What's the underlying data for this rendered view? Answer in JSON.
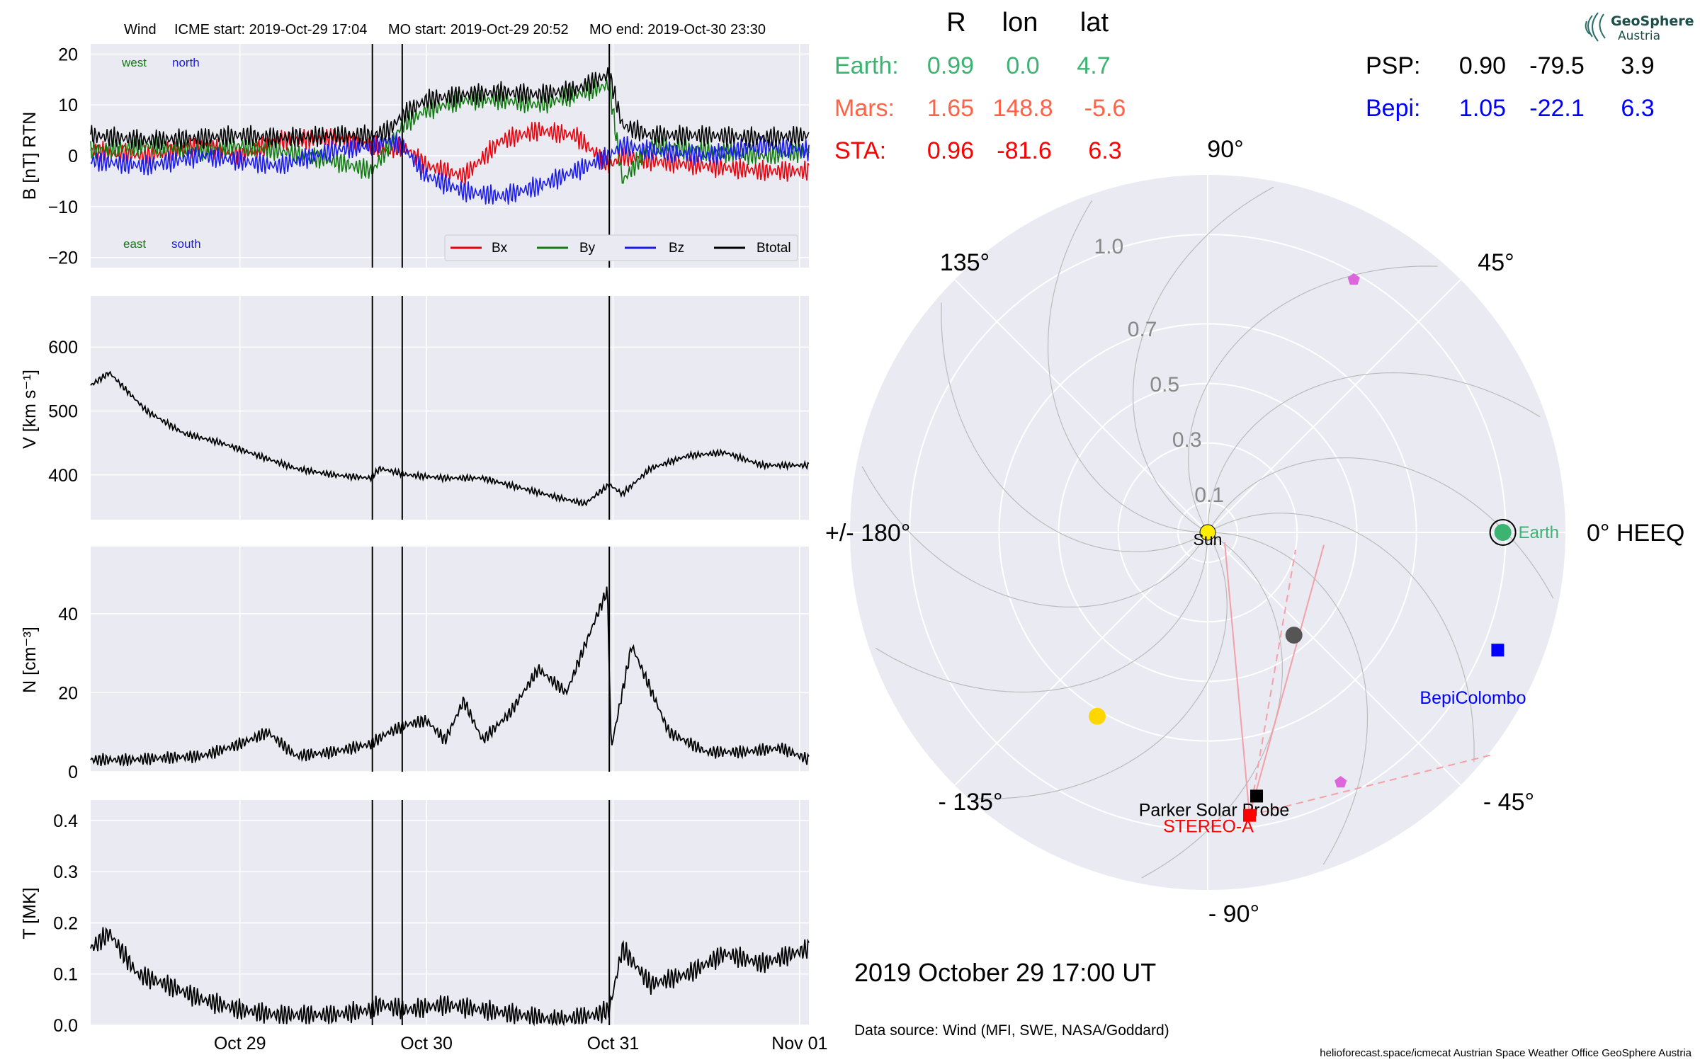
{
  "colors": {
    "plot_bg": "#eaeaf2",
    "grid": "#ffffff",
    "bx": "#e8000b",
    "by": "#117a11",
    "bz": "#1a1aee",
    "btotal": "#000000",
    "earth": "#3cb371",
    "mars": "#ff6347",
    "sta": "#ff0000",
    "psp": "#000000",
    "bepi": "#0000ff",
    "sun": "#ffee00",
    "ray": "#f4a0a8",
    "pentagon": "#dd66dd",
    "gray_planet": "#555555",
    "yellow_planet": "#ffd700"
  },
  "header": {
    "spacecraft": "Wind",
    "icme_start": "ICME start: 2019-Oct-29 17:04",
    "mo_start": "MO start: 2019-Oct-29 20:52",
    "mo_end": "MO end: 2019-Oct-30 23:30"
  },
  "chart_data": [
    {
      "type": "line",
      "panel": "magnetic-field",
      "ylabel": "B [nT] RTN",
      "ylim": [
        -22,
        22
      ],
      "yticks": [
        "20",
        "10",
        "0",
        "−10",
        "−20"
      ],
      "ytick_values": [
        20,
        10,
        0,
        -10,
        -20
      ],
      "xlim_days": [
        28.2,
        32.05
      ],
      "annotations": {
        "west": "west",
        "north": "north",
        "east": "east",
        "south": "south"
      },
      "legend_position": "bottom-right",
      "series": [
        {
          "name": "Bx",
          "color": "#e8000b",
          "x": [
            28.2,
            28.5,
            28.8,
            29.0,
            29.2,
            29.5,
            29.71,
            29.8,
            29.87,
            30.0,
            30.2,
            30.4,
            30.6,
            30.8,
            30.98,
            31.05,
            31.2,
            31.5,
            31.8,
            32.05
          ],
          "y": [
            1,
            0,
            2,
            0,
            3,
            3.5,
            2,
            1,
            2,
            -2,
            -4,
            3,
            5,
            4,
            -2,
            0,
            -1,
            -2,
            -3,
            -3
          ]
        },
        {
          "name": "By",
          "color": "#117a11",
          "x": [
            28.2,
            28.5,
            28.8,
            29.0,
            29.2,
            29.5,
            29.71,
            29.8,
            29.87,
            30.0,
            30.2,
            30.4,
            30.6,
            30.8,
            30.98,
            31.05,
            31.2,
            31.5,
            31.8,
            32.05
          ],
          "y": [
            1,
            2,
            1,
            2,
            1,
            -1,
            -3,
            2,
            6,
            9,
            11,
            11,
            10,
            12,
            14,
            -5,
            2,
            1,
            0,
            1
          ]
        },
        {
          "name": "Bz",
          "color": "#1a1aee",
          "x": [
            28.2,
            28.5,
            28.8,
            29.0,
            29.2,
            29.5,
            29.71,
            29.8,
            29.87,
            30.0,
            30.2,
            30.4,
            30.6,
            30.8,
            30.98,
            31.05,
            31.2,
            31.5,
            31.8,
            32.05
          ],
          "y": [
            -1,
            -2,
            0,
            -1,
            -2,
            1,
            2,
            3,
            2,
            -4,
            -7,
            -8,
            -6,
            -3,
            0,
            2,
            1,
            0,
            2,
            1
          ]
        },
        {
          "name": "Btotal",
          "color": "#000000",
          "x": [
            28.2,
            28.5,
            28.8,
            29.0,
            29.2,
            29.5,
            29.71,
            29.8,
            29.87,
            30.0,
            30.2,
            30.4,
            30.6,
            30.8,
            30.98,
            31.05,
            31.2,
            31.5,
            31.8,
            32.05
          ],
          "y": [
            4,
            3,
            3.5,
            4,
            3.5,
            4,
            4,
            5,
            8,
            11,
            12,
            12.5,
            12,
            13,
            16,
            6,
            4,
            4,
            3.5,
            4
          ]
        }
      ],
      "vlines_days": [
        29.71,
        29.87,
        30.98
      ]
    },
    {
      "type": "line",
      "panel": "velocity",
      "ylabel": "V [km s⁻¹]",
      "ylim": [
        330,
        680
      ],
      "yticks": [
        "600",
        "500",
        "400"
      ],
      "ytick_values": [
        600,
        500,
        400
      ],
      "xlim_days": [
        28.2,
        32.05
      ],
      "series": [
        {
          "name": "",
          "color": "#000000",
          "x": [
            28.2,
            28.3,
            28.5,
            28.7,
            28.9,
            29.1,
            29.3,
            29.5,
            29.7,
            29.75,
            29.9,
            30.1,
            30.3,
            30.5,
            30.7,
            30.85,
            30.98,
            31.05,
            31.2,
            31.4,
            31.6,
            31.8,
            32.05
          ],
          "y": [
            540,
            560,
            500,
            465,
            450,
            430,
            410,
            400,
            395,
            410,
            400,
            395,
            395,
            380,
            365,
            355,
            385,
            370,
            410,
            430,
            435,
            415,
            415
          ]
        }
      ],
      "vlines_days": [
        29.71,
        29.87,
        30.98
      ]
    },
    {
      "type": "line",
      "panel": "density",
      "ylabel": "N [cm⁻³]",
      "ylim": [
        0,
        57
      ],
      "yticks": [
        "40",
        "20",
        "0"
      ],
      "ytick_values": [
        40,
        20,
        0
      ],
      "xlim_days": [
        28.2,
        32.05
      ],
      "series": [
        {
          "name": "",
          "color": "#000000",
          "x": [
            28.2,
            28.4,
            28.6,
            28.8,
            29.0,
            29.15,
            29.3,
            29.5,
            29.7,
            29.8,
            29.9,
            30.0,
            30.1,
            30.2,
            30.3,
            30.45,
            30.6,
            30.75,
            30.9,
            30.97,
            30.99,
            31.1,
            31.3,
            31.5,
            31.7,
            31.9,
            32.05
          ],
          "y": [
            3,
            3,
            3.5,
            4,
            7,
            10,
            4,
            5,
            7,
            10,
            12,
            13,
            8,
            18,
            8,
            15,
            26,
            20,
            38,
            46,
            6,
            32,
            10,
            5,
            5,
            6,
            3
          ]
        }
      ],
      "vlines_days": [
        29.71,
        29.87,
        30.98
      ]
    },
    {
      "type": "line",
      "panel": "temperature",
      "ylabel": "T [MK]",
      "ylim": [
        0,
        0.44
      ],
      "yticks": [
        "0.4",
        "0.3",
        "0.2",
        "0.1",
        "0.0"
      ],
      "ytick_values": [
        0.4,
        0.3,
        0.2,
        0.1,
        0.0
      ],
      "xlim_days": [
        28.2,
        32.05
      ],
      "xticks": [
        "Oct 29",
        "Oct 30",
        "Oct 31",
        "Nov 01"
      ],
      "xtick_days": [
        29.0,
        30.0,
        31.0,
        32.0
      ],
      "series": [
        {
          "name": "",
          "color": "#000000",
          "x": [
            28.2,
            28.3,
            28.45,
            28.6,
            28.8,
            29.0,
            29.2,
            29.5,
            29.7,
            29.75,
            29.9,
            30.1,
            30.3,
            30.5,
            30.7,
            30.9,
            30.98,
            31.05,
            31.2,
            31.4,
            31.6,
            31.8,
            32.05
          ],
          "y": [
            0.15,
            0.18,
            0.1,
            0.08,
            0.05,
            0.03,
            0.02,
            0.02,
            0.03,
            0.04,
            0.03,
            0.04,
            0.03,
            0.02,
            0.01,
            0.02,
            0.03,
            0.15,
            0.08,
            0.1,
            0.14,
            0.12,
            0.15
          ]
        }
      ],
      "vlines_days": [
        29.71,
        29.87,
        30.98
      ]
    },
    {
      "type": "scatter",
      "panel": "polar-position-plot",
      "theta_labels": [
        "90°",
        "45°",
        "0° HEEQ",
        "- 45°",
        "- 90°",
        "- 135°",
        "+/- 180°",
        "135°"
      ],
      "r_labels": [
        "0.1",
        "0.3",
        "0.5",
        "0.7",
        "1.0"
      ],
      "r_label_values": [
        0.1,
        0.3,
        0.5,
        0.7,
        1.0
      ],
      "rmax": 1.2,
      "objects": [
        {
          "name": "Sun",
          "r": 0.0,
          "lon": 0.0,
          "color": "#ffee00"
        },
        {
          "name": "Earth",
          "r": 0.99,
          "lon": 0.0,
          "color": "#3cb371"
        },
        {
          "name": "BepiColombo",
          "r": 1.05,
          "lon": -22.1,
          "color": "#0000ff"
        },
        {
          "name": "Parker Solar Probe",
          "r": 0.9,
          "lon": -79.5,
          "color": "#000000"
        },
        {
          "name": "STEREO-A",
          "r": 0.96,
          "lon": -81.6,
          "color": "#ff0000"
        },
        {
          "name": "",
          "r": 0.72,
          "lon": -121,
          "color": "#ffd700"
        },
        {
          "name": "",
          "r": 0.45,
          "lon": -50,
          "color": "#555555"
        },
        {
          "name": "",
          "r": 0.98,
          "lon": 60,
          "color": "#dd66dd"
        },
        {
          "name": "",
          "r": 0.95,
          "lon": -62,
          "color": "#dd66dd"
        }
      ]
    }
  ],
  "positions_table": {
    "col_r": "R",
    "col_lon": "lon",
    "col_lat": "lat",
    "rows_left": [
      {
        "name": "Earth:",
        "r": "0.99",
        "lon": "0.0",
        "lat": "4.7",
        "color": "#3cb371"
      },
      {
        "name": "Mars:",
        "r": "1.65",
        "lon": "148.8",
        "lat": "-5.6",
        "color": "#ff6347"
      },
      {
        "name": "STA:",
        "r": "0.96",
        "lon": "-81.6",
        "lat": "6.3",
        "color": "#ff0000"
      }
    ],
    "rows_right": [
      {
        "name": "PSP:",
        "r": "0.90",
        "lon": "-79.5",
        "lat": "3.9",
        "color": "#000000"
      },
      {
        "name": "Bepi:",
        "r": "1.05",
        "lon": "-22.1",
        "lat": "6.3",
        "color": "#0000ff"
      }
    ]
  },
  "timestamp": "2019 October 29  17:00 UT",
  "data_source": "Data source: Wind (MFI, SWE, NASA/Goddard)",
  "footer": "helioforecast.space/icmecat   Austrian Space Weather Office   GeoSphere Austria",
  "logo": {
    "line1": "GeoSphere",
    "line2": "Austria"
  }
}
